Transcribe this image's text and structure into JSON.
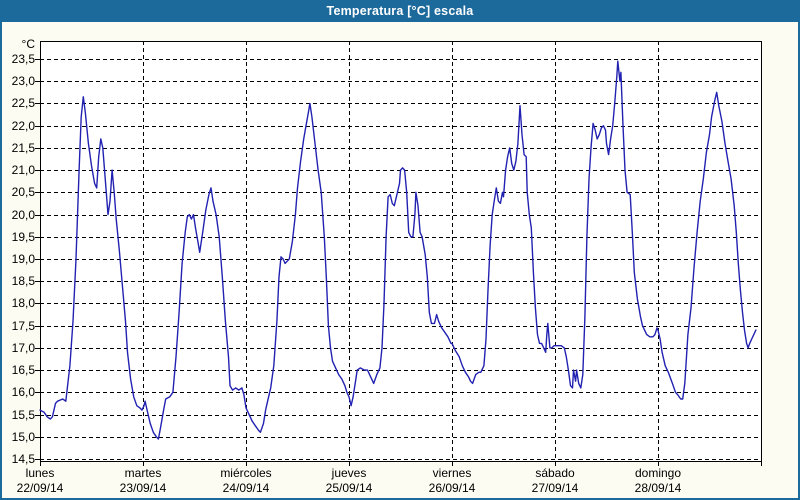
{
  "window": {
    "title": "Temperatura [°C] escala"
  },
  "colors": {
    "titlebar": "#1C699C",
    "window_border": "#1C699C",
    "background": "#FCFCF2",
    "plot_background": "#FFFFFF",
    "grid": "#000000",
    "line": "#2222B2",
    "title_text": "#FFFFFF",
    "axis_text": "#000000"
  },
  "chart_data": {
    "type": "line",
    "title": "Temperatura [°C] escala",
    "grid": "dashed",
    "legend": "none",
    "y_axis": {
      "unit_label": "°C",
      "min": 14.5,
      "max": 23.5,
      "tick_step": 0.5,
      "tick_labels": [
        "23,5",
        "23,0",
        "22,5",
        "22,0",
        "21,5",
        "21,0",
        "20,5",
        "20,0",
        "19,5",
        "19,0",
        "18,5",
        "18,0",
        "17,5",
        "17,0",
        "16,5",
        "16,0",
        "15,5",
        "15,0",
        "14,5"
      ]
    },
    "x_axis": {
      "days": [
        {
          "name": "lunes",
          "date": "22/09/14"
        },
        {
          "name": "martes",
          "date": "23/09/14"
        },
        {
          "name": "miércoles",
          "date": "24/09/14"
        },
        {
          "name": "jueves",
          "date": "25/09/14"
        },
        {
          "name": "viernes",
          "date": "26/09/14"
        },
        {
          "name": "sábado",
          "date": "27/09/14"
        },
        {
          "name": "domingo",
          "date": "28/09/14"
        }
      ]
    },
    "series": [
      {
        "name": "Temperatura",
        "color": "#2222B2",
        "x_unit": "days_from_monday_start",
        "points": [
          [
            0,
            15.6
          ],
          [
            0.04,
            15.55
          ],
          [
            0.07,
            15.45
          ],
          [
            0.1,
            15.4
          ],
          [
            0.12,
            15.45
          ],
          [
            0.15,
            15.75
          ],
          [
            0.17,
            15.8
          ],
          [
            0.22,
            15.85
          ],
          [
            0.25,
            15.8
          ],
          [
            0.29,
            16.6
          ],
          [
            0.32,
            17.6
          ],
          [
            0.35,
            19.0
          ],
          [
            0.38,
            21.0
          ],
          [
            0.4,
            22.2
          ],
          [
            0.42,
            22.65
          ],
          [
            0.44,
            22.3
          ],
          [
            0.47,
            21.6
          ],
          [
            0.5,
            21.1
          ],
          [
            0.53,
            20.7
          ],
          [
            0.55,
            20.6
          ],
          [
            0.57,
            21.3
          ],
          [
            0.59,
            21.7
          ],
          [
            0.61,
            21.5
          ],
          [
            0.63,
            20.9
          ],
          [
            0.66,
            20.0
          ],
          [
            0.68,
            20.3
          ],
          [
            0.7,
            21.0
          ],
          [
            0.72,
            20.5
          ],
          [
            0.74,
            19.9
          ],
          [
            0.77,
            19.2
          ],
          [
            0.8,
            18.4
          ],
          [
            0.83,
            17.6
          ],
          [
            0.85,
            16.9
          ],
          [
            0.88,
            16.3
          ],
          [
            0.91,
            15.9
          ],
          [
            0.94,
            15.7
          ],
          [
            0.97,
            15.65
          ],
          [
            0.99,
            15.6
          ],
          [
            1.01,
            15.7
          ],
          [
            1.02,
            15.8
          ],
          [
            1.04,
            15.6
          ],
          [
            1.07,
            15.3
          ],
          [
            1.1,
            15.1
          ],
          [
            1.13,
            15.0
          ],
          [
            1.15,
            14.95
          ],
          [
            1.17,
            15.2
          ],
          [
            1.2,
            15.6
          ],
          [
            1.22,
            15.85
          ],
          [
            1.26,
            15.9
          ],
          [
            1.29,
            16.0
          ],
          [
            1.32,
            16.8
          ],
          [
            1.35,
            17.8
          ],
          [
            1.38,
            18.9
          ],
          [
            1.41,
            19.6
          ],
          [
            1.43,
            19.95
          ],
          [
            1.45,
            20.0
          ],
          [
            1.47,
            19.9
          ],
          [
            1.49,
            20.0
          ],
          [
            1.51,
            19.7
          ],
          [
            1.54,
            19.3
          ],
          [
            1.55,
            19.15
          ],
          [
            1.58,
            19.6
          ],
          [
            1.61,
            20.1
          ],
          [
            1.64,
            20.45
          ],
          [
            1.66,
            20.6
          ],
          [
            1.68,
            20.3
          ],
          [
            1.71,
            20.0
          ],
          [
            1.74,
            19.5
          ],
          [
            1.77,
            18.6
          ],
          [
            1.8,
            17.6
          ],
          [
            1.83,
            16.8
          ],
          [
            1.845,
            16.15
          ],
          [
            1.87,
            16.05
          ],
          [
            1.9,
            16.1
          ],
          [
            1.93,
            16.05
          ],
          [
            1.96,
            16.1
          ],
          [
            1.98,
            15.95
          ],
          [
            2.0,
            15.65
          ],
          [
            2.03,
            15.5
          ],
          [
            2.06,
            15.35
          ],
          [
            2.09,
            15.25
          ],
          [
            2.12,
            15.15
          ],
          [
            2.14,
            15.1
          ],
          [
            2.17,
            15.3
          ],
          [
            2.19,
            15.6
          ],
          [
            2.21,
            15.8
          ],
          [
            2.24,
            16.1
          ],
          [
            2.27,
            16.6
          ],
          [
            2.3,
            17.6
          ],
          [
            2.32,
            18.6
          ],
          [
            2.34,
            19.05
          ],
          [
            2.36,
            19.0
          ],
          [
            2.38,
            18.9
          ],
          [
            2.4,
            18.95
          ],
          [
            2.42,
            19.0
          ],
          [
            2.45,
            19.4
          ],
          [
            2.48,
            20.0
          ],
          [
            2.5,
            20.6
          ],
          [
            2.53,
            21.2
          ],
          [
            2.56,
            21.7
          ],
          [
            2.59,
            22.1
          ],
          [
            2.61,
            22.35
          ],
          [
            2.62,
            22.5
          ],
          [
            2.64,
            22.2
          ],
          [
            2.67,
            21.6
          ],
          [
            2.7,
            21.0
          ],
          [
            2.73,
            20.5
          ],
          [
            2.76,
            19.5
          ],
          [
            2.78,
            18.6
          ],
          [
            2.8,
            17.5
          ],
          [
            2.82,
            17.0
          ],
          [
            2.84,
            16.7
          ],
          [
            2.87,
            16.55
          ],
          [
            2.9,
            16.4
          ],
          [
            2.93,
            16.3
          ],
          [
            2.96,
            16.15
          ],
          [
            2.98,
            16.0
          ],
          [
            3.0,
            15.9
          ],
          [
            3.02,
            15.7
          ],
          [
            3.04,
            15.9
          ],
          [
            3.06,
            16.2
          ],
          [
            3.08,
            16.5
          ],
          [
            3.11,
            16.55
          ],
          [
            3.15,
            16.5
          ],
          [
            3.18,
            16.5
          ],
          [
            3.21,
            16.35
          ],
          [
            3.24,
            16.2
          ],
          [
            3.27,
            16.4
          ],
          [
            3.3,
            16.55
          ],
          [
            3.32,
            17.0
          ],
          [
            3.34,
            18.0
          ],
          [
            3.36,
            19.5
          ],
          [
            3.38,
            20.4
          ],
          [
            3.4,
            20.45
          ],
          [
            3.42,
            20.25
          ],
          [
            3.44,
            20.2
          ],
          [
            3.46,
            20.4
          ],
          [
            3.49,
            20.7
          ],
          [
            3.5,
            21.0
          ],
          [
            3.52,
            21.05
          ],
          [
            3.54,
            21.0
          ],
          [
            3.56,
            20.5
          ],
          [
            3.58,
            19.6
          ],
          [
            3.6,
            19.5
          ],
          [
            3.62,
            19.5
          ],
          [
            3.64,
            20.0
          ],
          [
            3.65,
            20.5
          ],
          [
            3.67,
            20.2
          ],
          [
            3.69,
            19.6
          ],
          [
            3.71,
            19.5
          ],
          [
            3.74,
            19.1
          ],
          [
            3.76,
            18.6
          ],
          [
            3.78,
            17.8
          ],
          [
            3.8,
            17.55
          ],
          [
            3.83,
            17.55
          ],
          [
            3.85,
            17.75
          ],
          [
            3.87,
            17.6
          ],
          [
            3.9,
            17.45
          ],
          [
            3.93,
            17.35
          ],
          [
            3.96,
            17.25
          ],
          [
            3.99,
            17.1
          ],
          [
            4.0,
            17.1
          ],
          [
            4.03,
            16.95
          ],
          [
            4.07,
            16.8
          ],
          [
            4.1,
            16.6
          ],
          [
            4.13,
            16.45
          ],
          [
            4.16,
            16.35
          ],
          [
            4.18,
            16.25
          ],
          [
            4.2,
            16.2
          ],
          [
            4.23,
            16.4
          ],
          [
            4.26,
            16.45
          ],
          [
            4.28,
            16.45
          ],
          [
            4.31,
            16.6
          ],
          [
            4.33,
            17.2
          ],
          [
            4.35,
            18.3
          ],
          [
            4.37,
            19.3
          ],
          [
            4.39,
            20.0
          ],
          [
            4.41,
            20.3
          ],
          [
            4.43,
            20.6
          ],
          [
            4.45,
            20.3
          ],
          [
            4.47,
            20.25
          ],
          [
            4.49,
            20.5
          ],
          [
            4.5,
            20.4
          ],
          [
            4.52,
            21.0
          ],
          [
            4.54,
            21.3
          ],
          [
            4.56,
            21.5
          ],
          [
            4.58,
            21.15
          ],
          [
            4.6,
            21.0
          ],
          [
            4.62,
            21.2
          ],
          [
            4.64,
            21.6
          ],
          [
            4.66,
            22.45
          ],
          [
            4.68,
            21.8
          ],
          [
            4.7,
            21.35
          ],
          [
            4.72,
            21.3
          ],
          [
            4.73,
            20.5
          ],
          [
            4.75,
            20.0
          ],
          [
            4.77,
            19.7
          ],
          [
            4.79,
            18.7
          ],
          [
            4.81,
            17.9
          ],
          [
            4.83,
            17.3
          ],
          [
            4.85,
            17.1
          ],
          [
            4.87,
            17.1
          ],
          [
            4.89,
            17.0
          ],
          [
            4.91,
            16.9
          ],
          [
            4.92,
            17.3
          ],
          [
            4.93,
            17.55
          ],
          [
            4.95,
            17.0
          ],
          [
            4.97,
            17.0
          ],
          [
            4.99,
            17.05
          ],
          [
            5.0,
            17.05
          ],
          [
            5.03,
            17.05
          ],
          [
            5.06,
            17.05
          ],
          [
            5.09,
            17.0
          ],
          [
            5.11,
            16.8
          ],
          [
            5.13,
            16.5
          ],
          [
            5.15,
            16.15
          ],
          [
            5.17,
            16.1
          ],
          [
            5.18,
            16.5
          ],
          [
            5.2,
            16.25
          ],
          [
            5.21,
            16.5
          ],
          [
            5.23,
            16.2
          ],
          [
            5.25,
            16.1
          ],
          [
            5.27,
            16.4
          ],
          [
            5.29,
            17.7
          ],
          [
            5.31,
            19.5
          ],
          [
            5.33,
            20.8
          ],
          [
            5.35,
            21.5
          ],
          [
            5.37,
            22.05
          ],
          [
            5.39,
            21.9
          ],
          [
            5.41,
            21.7
          ],
          [
            5.43,
            21.8
          ],
          [
            5.45,
            21.95
          ],
          [
            5.47,
            22.0
          ],
          [
            5.49,
            21.9
          ],
          [
            5.5,
            21.6
          ],
          [
            5.52,
            21.35
          ],
          [
            5.54,
            21.7
          ],
          [
            5.56,
            22.0
          ],
          [
            5.58,
            22.5
          ],
          [
            5.6,
            23.1
          ],
          [
            5.61,
            23.45
          ],
          [
            5.63,
            23.0
          ],
          [
            5.64,
            23.2
          ],
          [
            5.66,
            22.0
          ],
          [
            5.68,
            21.0
          ],
          [
            5.7,
            20.5
          ],
          [
            5.73,
            20.45
          ],
          [
            5.75,
            19.6
          ],
          [
            5.77,
            18.7
          ],
          [
            5.8,
            18.1
          ],
          [
            5.83,
            17.7
          ],
          [
            5.85,
            17.5
          ],
          [
            5.89,
            17.3
          ],
          [
            5.92,
            17.25
          ],
          [
            5.95,
            17.25
          ],
          [
            5.97,
            17.3
          ],
          [
            5.99,
            17.45
          ],
          [
            6.0,
            17.4
          ],
          [
            6.02,
            17.2
          ],
          [
            6.04,
            16.9
          ],
          [
            6.07,
            16.6
          ],
          [
            6.1,
            16.45
          ],
          [
            6.14,
            16.2
          ],
          [
            6.17,
            16.0
          ],
          [
            6.19,
            15.95
          ],
          [
            6.22,
            15.85
          ],
          [
            6.24,
            15.85
          ],
          [
            6.26,
            16.2
          ],
          [
            6.29,
            17.3
          ],
          [
            6.32,
            17.9
          ],
          [
            6.35,
            18.8
          ],
          [
            6.38,
            19.6
          ],
          [
            6.41,
            20.3
          ],
          [
            6.44,
            20.8
          ],
          [
            6.47,
            21.4
          ],
          [
            6.5,
            21.8
          ],
          [
            6.52,
            22.2
          ],
          [
            6.55,
            22.55
          ],
          [
            6.57,
            22.75
          ],
          [
            6.59,
            22.45
          ],
          [
            6.62,
            22.1
          ],
          [
            6.65,
            21.6
          ],
          [
            6.68,
            21.2
          ],
          [
            6.71,
            20.8
          ],
          [
            6.74,
            20.2
          ],
          [
            6.76,
            19.6
          ],
          [
            6.78,
            18.9
          ],
          [
            6.8,
            18.3
          ],
          [
            6.82,
            17.8
          ],
          [
            6.84,
            17.4
          ],
          [
            6.86,
            17.1
          ],
          [
            6.875,
            17.0
          ],
          [
            6.89,
            17.1
          ],
          [
            6.91,
            17.2
          ],
          [
            6.93,
            17.3
          ],
          [
            6.95,
            17.4
          ]
        ]
      }
    ]
  }
}
